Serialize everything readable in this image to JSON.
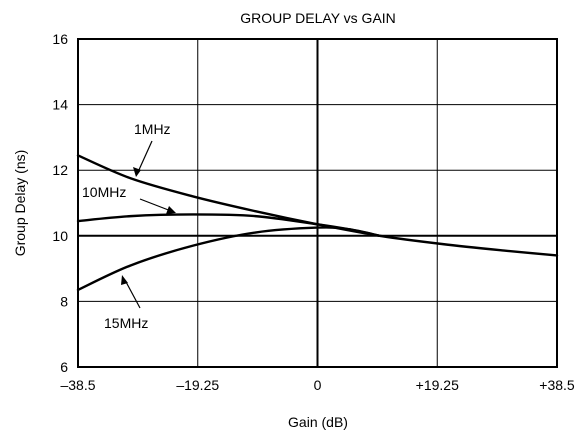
{
  "chart_data": {
    "type": "line",
    "title": "GROUP DELAY vs GAIN",
    "xlabel": "Gain (dB)",
    "ylabel": "Group Delay (ns)",
    "xlim": [
      -38.5,
      38.5
    ],
    "ylim": [
      6,
      16
    ],
    "x_ticks": [
      -38.5,
      -19.25,
      0,
      19.25,
      38.5
    ],
    "x_tick_labels": [
      "–38.5",
      "–19.25",
      "0",
      "+19.25",
      "+38.5"
    ],
    "y_ticks": [
      6,
      8,
      10,
      12,
      14,
      16
    ],
    "y_tick_labels": [
      "6",
      "8",
      "10",
      "12",
      "14",
      "16"
    ],
    "grid": true,
    "series": [
      {
        "name": "1MHz",
        "x": [
          -38.5,
          -30,
          -20,
          -10,
          0,
          10,
          20,
          30,
          38.5
        ],
        "y": [
          12.45,
          11.75,
          11.2,
          10.75,
          10.35,
          10.0,
          9.75,
          9.55,
          9.4
        ]
      },
      {
        "name": "10MHz",
        "x": [
          -38.5,
          -30,
          -20,
          -10,
          0,
          5,
          10
        ],
        "y": [
          10.45,
          10.6,
          10.65,
          10.6,
          10.35,
          10.2,
          10.0
        ]
      },
      {
        "name": "15MHz",
        "x": [
          -38.5,
          -30,
          -20,
          -10,
          0,
          5,
          10
        ],
        "y": [
          8.35,
          9.1,
          9.7,
          10.1,
          10.25,
          10.2,
          10.0
        ]
      }
    ]
  }
}
